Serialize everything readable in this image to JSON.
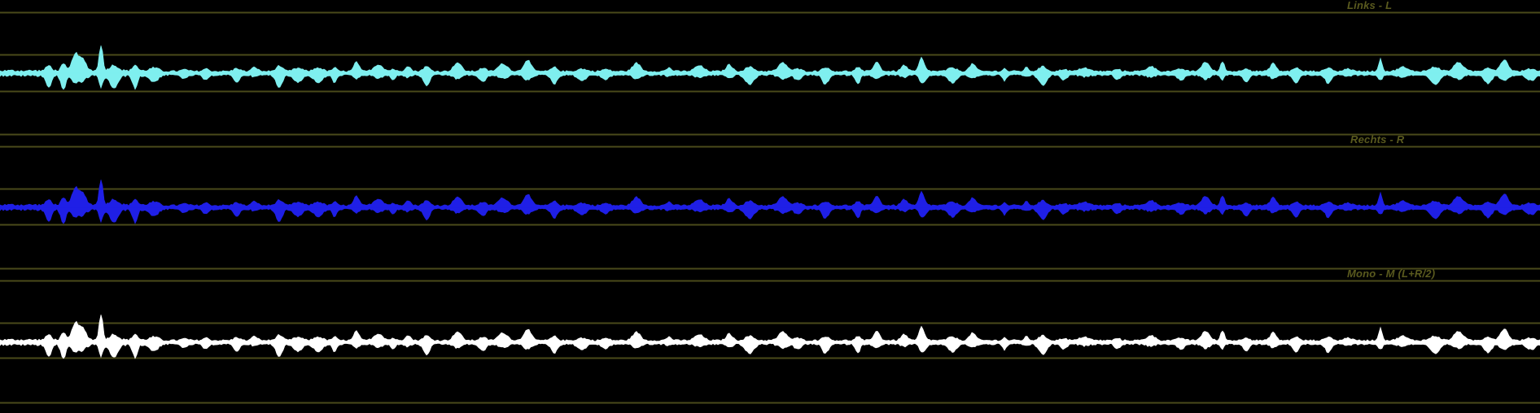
{
  "channels": [
    {
      "id": "left",
      "label": "Links - L",
      "color": "#7fefef"
    },
    {
      "id": "right",
      "label": "Rechts - R",
      "color": "#1f1fe6"
    },
    {
      "id": "mono",
      "label": "Mono - M (L+R/2)",
      "color": "#ffffff"
    }
  ],
  "colors": {
    "background": "#000000",
    "grid_line": "#4a4a1a",
    "label_text": "#5a5a1e"
  }
}
